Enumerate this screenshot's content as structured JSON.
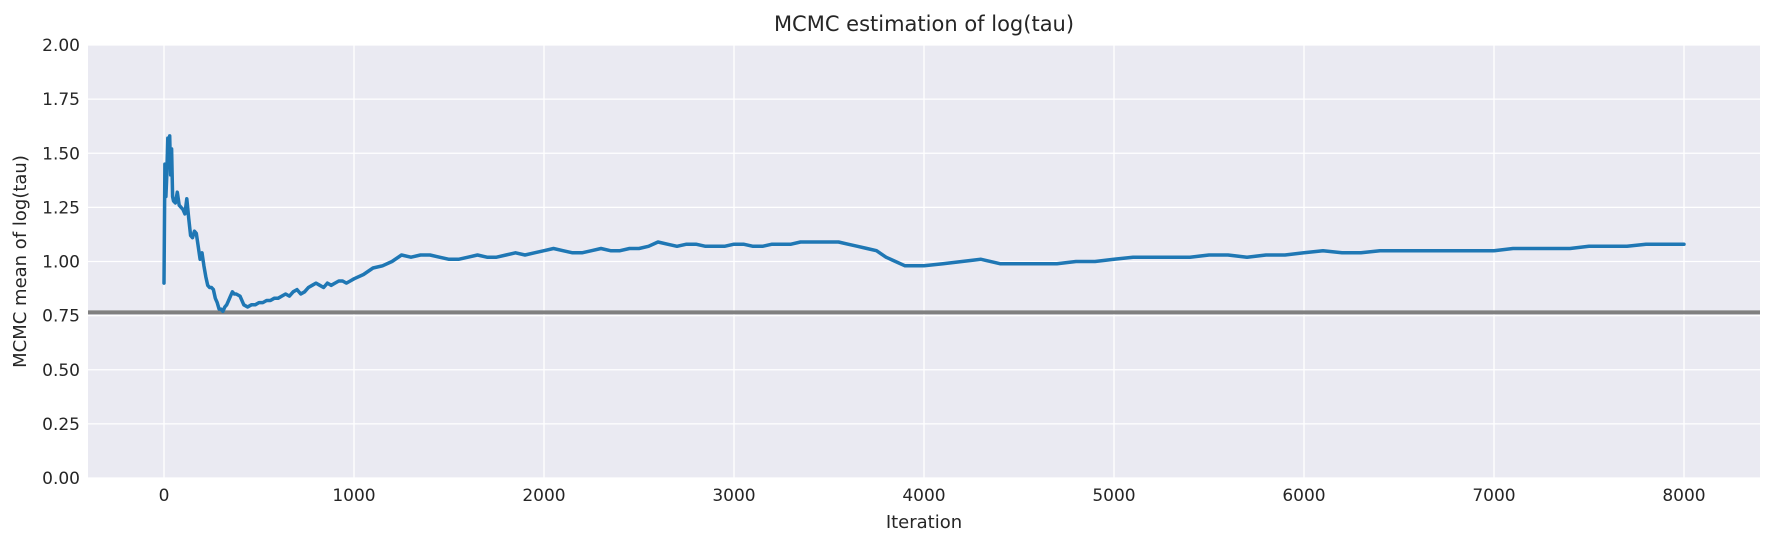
{
  "chart_data": {
    "type": "line",
    "title": "MCMC estimation of log(tau)",
    "xlabel": "Iteration",
    "ylabel": "MCMC mean of log(tau)",
    "xlim": [
      -400,
      8400
    ],
    "ylim": [
      0,
      2
    ],
    "x_ticks": [
      "0",
      "1000",
      "2000",
      "3000",
      "4000",
      "5000",
      "6000",
      "7000",
      "8000"
    ],
    "y_ticks": [
      "0.00",
      "0.25",
      "0.50",
      "0.75",
      "1.00",
      "1.25",
      "1.50",
      "1.75",
      "2.00"
    ],
    "grid": true,
    "background": "#eaeaf2",
    "reference_line": {
      "y": 0.765,
      "color": "#808080"
    },
    "series": [
      {
        "color": "#1f77b4",
        "x": [
          0,
          5,
          10,
          15,
          20,
          25,
          30,
          35,
          40,
          45,
          50,
          60,
          70,
          80,
          90,
          100,
          110,
          120,
          130,
          140,
          150,
          160,
          170,
          180,
          190,
          200,
          210,
          220,
          230,
          240,
          250,
          260,
          270,
          280,
          290,
          300,
          310,
          320,
          330,
          340,
          350,
          360,
          370,
          380,
          400,
          420,
          440,
          460,
          480,
          500,
          520,
          540,
          560,
          580,
          600,
          620,
          640,
          660,
          680,
          700,
          720,
          740,
          760,
          780,
          800,
          820,
          840,
          860,
          880,
          900,
          920,
          940,
          960,
          980,
          1000,
          1050,
          1100,
          1150,
          1200,
          1250,
          1300,
          1350,
          1400,
          1450,
          1500,
          1550,
          1600,
          1650,
          1700,
          1750,
          1800,
          1850,
          1900,
          1950,
          2000,
          2050,
          2100,
          2150,
          2200,
          2250,
          2300,
          2350,
          2400,
          2450,
          2500,
          2550,
          2600,
          2650,
          2700,
          2750,
          2800,
          2850,
          2900,
          2950,
          3000,
          3050,
          3100,
          3150,
          3200,
          3250,
          3300,
          3350,
          3400,
          3450,
          3500,
          3550,
          3600,
          3650,
          3700,
          3750,
          3800,
          3850,
          3900,
          3950,
          4000,
          4100,
          4200,
          4300,
          4400,
          4500,
          4600,
          4700,
          4800,
          4900,
          5000,
          5100,
          5200,
          5300,
          5400,
          5500,
          5600,
          5700,
          5800,
          5900,
          6000,
          6100,
          6200,
          6300,
          6400,
          6500,
          6600,
          6700,
          6800,
          6900,
          7000,
          7100,
          7200,
          7300,
          7400,
          7500,
          7600,
          7700,
          7800,
          7900,
          8000
        ],
        "y": [
          0.9,
          1.45,
          1.3,
          1.4,
          1.57,
          1.45,
          1.58,
          1.4,
          1.52,
          1.3,
          1.28,
          1.27,
          1.32,
          1.26,
          1.25,
          1.24,
          1.22,
          1.29,
          1.2,
          1.12,
          1.11,
          1.14,
          1.13,
          1.07,
          1.01,
          1.04,
          0.98,
          0.93,
          0.89,
          0.88,
          0.88,
          0.87,
          0.83,
          0.81,
          0.78,
          0.78,
          0.77,
          0.79,
          0.8,
          0.82,
          0.84,
          0.86,
          0.85,
          0.85,
          0.84,
          0.8,
          0.79,
          0.8,
          0.8,
          0.81,
          0.81,
          0.82,
          0.82,
          0.83,
          0.83,
          0.84,
          0.85,
          0.84,
          0.86,
          0.87,
          0.85,
          0.86,
          0.88,
          0.89,
          0.9,
          0.89,
          0.88,
          0.9,
          0.89,
          0.9,
          0.91,
          0.91,
          0.9,
          0.91,
          0.92,
          0.94,
          0.97,
          0.98,
          1.0,
          1.03,
          1.02,
          1.03,
          1.03,
          1.02,
          1.01,
          1.01,
          1.02,
          1.03,
          1.02,
          1.02,
          1.03,
          1.04,
          1.03,
          1.04,
          1.05,
          1.06,
          1.05,
          1.04,
          1.04,
          1.05,
          1.06,
          1.05,
          1.05,
          1.06,
          1.06,
          1.07,
          1.09,
          1.08,
          1.07,
          1.08,
          1.08,
          1.07,
          1.07,
          1.07,
          1.08,
          1.08,
          1.07,
          1.07,
          1.08,
          1.08,
          1.08,
          1.09,
          1.09,
          1.09,
          1.09,
          1.09,
          1.08,
          1.07,
          1.06,
          1.05,
          1.02,
          1.0,
          0.98,
          0.98,
          0.98,
          0.99,
          1.0,
          1.01,
          0.99,
          0.99,
          0.99,
          0.99,
          1.0,
          1.0,
          1.01,
          1.02,
          1.02,
          1.02,
          1.02,
          1.03,
          1.03,
          1.02,
          1.03,
          1.03,
          1.04,
          1.05,
          1.04,
          1.04,
          1.05,
          1.05,
          1.05,
          1.05,
          1.05,
          1.05,
          1.05,
          1.06,
          1.06,
          1.06,
          1.06,
          1.07,
          1.07,
          1.07,
          1.08,
          1.08,
          1.08
        ]
      }
    ]
  }
}
